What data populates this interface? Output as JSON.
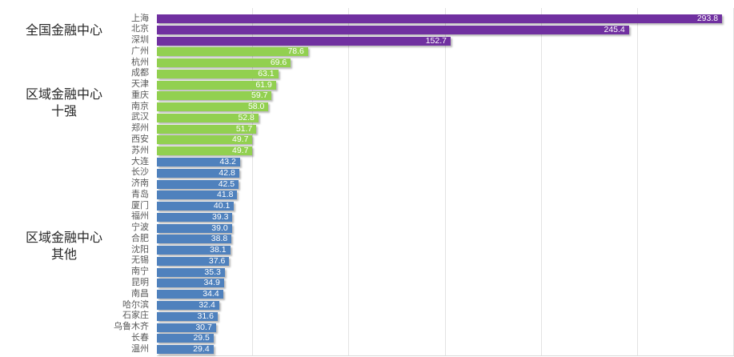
{
  "chart_data": {
    "type": "bar",
    "orientation": "horizontal",
    "title": "",
    "xlabel": "",
    "ylabel": "",
    "xlim": [
      0,
      300
    ],
    "gridline_interval": 50,
    "grid": true,
    "value_label_position": "inside-end",
    "groups": [
      {
        "id": "national",
        "label_lines": [
          "全国金融中心"
        ],
        "color": "#7030A0"
      },
      {
        "id": "regional-top10",
        "label_lines": [
          "区域金融中心",
          "十强"
        ],
        "color": "#92D050"
      },
      {
        "id": "regional-others",
        "label_lines": [
          "区域金融中心",
          "其他"
        ],
        "color": "#4F81BD"
      }
    ],
    "bars": [
      {
        "city": "上海",
        "value": 293.8,
        "group": 0
      },
      {
        "city": "北京",
        "value": 245.4,
        "group": 0
      },
      {
        "city": "深圳",
        "value": 152.7,
        "group": 0
      },
      {
        "city": "广州",
        "value": 78.6,
        "group": 1
      },
      {
        "city": "杭州",
        "value": 69.6,
        "group": 1
      },
      {
        "city": "成都",
        "value": 63.1,
        "group": 1
      },
      {
        "city": "天津",
        "value": 61.9,
        "group": 1
      },
      {
        "city": "重庆",
        "value": 59.7,
        "group": 1
      },
      {
        "city": "南京",
        "value": 58.0,
        "group": 1
      },
      {
        "city": "武汉",
        "value": 52.8,
        "group": 1
      },
      {
        "city": "郑州",
        "value": 51.7,
        "group": 1
      },
      {
        "city": "西安",
        "value": 49.7,
        "group": 1
      },
      {
        "city": "苏州",
        "value": 49.7,
        "group": 1
      },
      {
        "city": "大连",
        "value": 43.2,
        "group": 2
      },
      {
        "city": "长沙",
        "value": 42.8,
        "group": 2
      },
      {
        "city": "济南",
        "value": 42.5,
        "group": 2
      },
      {
        "city": "青岛",
        "value": 41.8,
        "group": 2
      },
      {
        "city": "厦门",
        "value": 40.1,
        "group": 2
      },
      {
        "city": "福州",
        "value": 39.3,
        "group": 2
      },
      {
        "city": "宁波",
        "value": 39.0,
        "group": 2
      },
      {
        "city": "合肥",
        "value": 38.8,
        "group": 2
      },
      {
        "city": "沈阳",
        "value": 38.1,
        "group": 2
      },
      {
        "city": "无锡",
        "value": 37.6,
        "group": 2
      },
      {
        "city": "南宁",
        "value": 35.3,
        "group": 2
      },
      {
        "city": "昆明",
        "value": 34.9,
        "group": 2
      },
      {
        "city": "南昌",
        "value": 34.4,
        "group": 2
      },
      {
        "city": "哈尔滨",
        "value": 32.4,
        "group": 2
      },
      {
        "city": "石家庄",
        "value": 31.6,
        "group": 2
      },
      {
        "city": "乌鲁木齐",
        "value": 30.7,
        "group": 2
      },
      {
        "city": "长春",
        "value": 29.5,
        "group": 2
      },
      {
        "city": "温州",
        "value": 29.4,
        "group": 2
      }
    ]
  },
  "colors": {
    "background": "#ffffff",
    "gridline": "#e3e3e3",
    "axis_line": "#d9d9d9",
    "city_label_text": "#595959",
    "group_label_text": "#262626",
    "value_label_text": "#ffffff",
    "bar_national": "#7030A0",
    "bar_regional_top10": "#92D050",
    "bar_regional_others": "#4F81BD"
  }
}
